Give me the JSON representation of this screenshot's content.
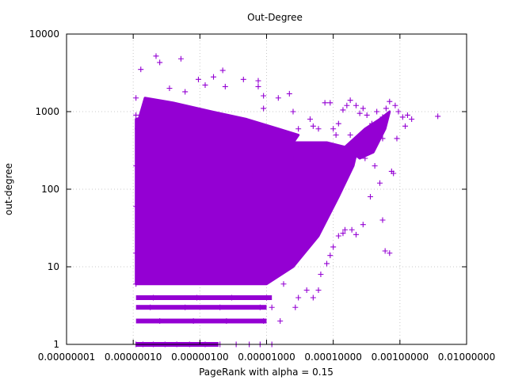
{
  "chart_data": {
    "type": "scatter",
    "title": "Out-Degree",
    "xlabel": "PageRank with alpha = 0.15",
    "ylabel": "out-degree",
    "x_scale": "log",
    "y_scale": "log",
    "xlim": [
      1e-08,
      0.01
    ],
    "ylim": [
      1,
      10000
    ],
    "x_ticks": [
      {
        "value": 1e-08,
        "label": "0.00000001"
      },
      {
        "value": 1e-07,
        "label": "0.00000010"
      },
      {
        "value": 1e-06,
        "label": "0.00000100"
      },
      {
        "value": 1e-05,
        "label": "0.00001000"
      },
      {
        "value": 0.0001,
        "label": "0.00010000"
      },
      {
        "value": 0.001,
        "label": "0.00100000"
      },
      {
        "value": 0.01,
        "label": "0.01000000"
      }
    ],
    "y_ticks": [
      {
        "value": 1,
        "label": "1"
      },
      {
        "value": 10,
        "label": "10"
      },
      {
        "value": 100,
        "label": "100"
      },
      {
        "value": 1000,
        "label": "1000"
      },
      {
        "value": 10000,
        "label": "10000"
      }
    ],
    "grid": true,
    "legend": "none",
    "marker": "+",
    "color": "#9400d3",
    "series": [
      {
        "values": [
          [
            1.3e-07,
            3500
          ],
          [
            2.2e-07,
            5200
          ],
          [
            2.5e-07,
            4300
          ],
          [
            5.2e-07,
            4800
          ],
          [
            3.5e-07,
            2000
          ],
          [
            6e-07,
            1800
          ],
          [
            9.5e-07,
            2600
          ],
          [
            1.2e-06,
            2200
          ],
          [
            1.6e-06,
            2800
          ],
          [
            2.4e-06,
            2100
          ],
          [
            4.5e-06,
            2600
          ],
          [
            7.5e-06,
            2500
          ],
          [
            7.5e-06,
            2100
          ],
          [
            2.2e-06,
            3400
          ],
          [
            9e-06,
            1600
          ],
          [
            1.5e-05,
            1500
          ],
          [
            9e-06,
            1100
          ],
          [
            2.2e-05,
            1700
          ],
          [
            2.5e-05,
            1000
          ],
          [
            3e-05,
            600
          ],
          [
            4.5e-05,
            800
          ],
          [
            5e-05,
            650
          ],
          [
            6e-05,
            600
          ],
          [
            7.5e-05,
            1300
          ],
          [
            9e-05,
            1300
          ],
          [
            0.0001,
            600
          ],
          [
            0.00011,
            500
          ],
          [
            0.00012,
            700
          ],
          [
            0.00014,
            1050
          ],
          [
            0.00016,
            1200
          ],
          [
            0.00018,
            1400
          ],
          [
            0.00022,
            1200
          ],
          [
            0.00025,
            950
          ],
          [
            0.00028,
            1100
          ],
          [
            0.00032,
            900
          ],
          [
            0.00038,
            700
          ],
          [
            0.00045,
            1000
          ],
          [
            0.00055,
            850
          ],
          [
            0.00062,
            1100
          ],
          [
            0.0007,
            1350
          ],
          [
            0.00085,
            1200
          ],
          [
            0.00095,
            1000
          ],
          [
            0.0011,
            850
          ],
          [
            0.0012,
            650
          ],
          [
            0.0013,
            900
          ],
          [
            0.0015,
            800
          ],
          [
            0.0037,
            870
          ],
          [
            0.00018,
            500
          ],
          [
            0.00024,
            300
          ],
          [
            0.0003,
            250
          ],
          [
            0.0004,
            350
          ],
          [
            0.00055,
            450
          ],
          [
            0.00075,
            170
          ],
          [
            0.0008,
            160
          ],
          [
            0.0009,
            450
          ],
          [
            0.00042,
            200
          ],
          [
            0.0005,
            120
          ],
          [
            0.00036,
            80
          ],
          [
            0.00028,
            35
          ],
          [
            0.00022,
            26
          ],
          [
            0.00055,
            40
          ],
          [
            0.0006,
            16
          ],
          [
            0.0007,
            15
          ],
          [
            0.00019,
            30
          ],
          [
            0.00015,
            30
          ],
          [
            0.00014,
            27
          ],
          [
            0.00012,
            25
          ],
          [
            0.0001,
            18
          ],
          [
            9e-05,
            14
          ],
          [
            8e-05,
            11
          ],
          [
            6.5e-05,
            8
          ],
          [
            6e-05,
            5
          ],
          [
            5e-05,
            4
          ],
          [
            4e-05,
            5
          ],
          [
            3e-05,
            4
          ],
          [
            2.7e-05,
            3
          ],
          [
            1.8e-05,
            6
          ],
          [
            1.2e-05,
            3
          ],
          [
            1.6e-05,
            2
          ],
          [
            1.2e-05,
            1
          ],
          [
            8e-06,
            1
          ],
          [
            5.5e-06,
            1
          ],
          [
            3.5e-06,
            1
          ],
          [
            2e-06,
            1
          ],
          [
            1.2e-06,
            1
          ],
          [
            7e-07,
            1
          ],
          [
            4.5e-07,
            1
          ],
          [
            3e-07,
            1
          ],
          [
            2e-07,
            1
          ],
          [
            1.4e-07,
            1
          ],
          [
            1.1e-07,
            1
          ],
          [
            9e-06,
            2
          ],
          [
            2.5e-06,
            2
          ],
          [
            8e-07,
            2
          ],
          [
            2.5e-07,
            2
          ],
          [
            8e-06,
            3
          ],
          [
            2e-06,
            3
          ],
          [
            6e-07,
            3
          ],
          [
            1.8e-07,
            3
          ],
          [
            1e-05,
            4
          ],
          [
            3e-06,
            4
          ],
          [
            9e-07,
            4
          ],
          [
            2e-07,
            4
          ],
          [
            1.1e-07,
            6
          ],
          [
            1.1e-07,
            15
          ],
          [
            1.1e-07,
            60
          ],
          [
            1.1e-07,
            200
          ],
          [
            1.1e-07,
            900
          ],
          [
            1.1e-07,
            1500
          ],
          [
            1.4e-07,
            800
          ],
          [
            2e-07,
            600
          ],
          [
            4e-07,
            300
          ],
          [
            8e-07,
            200
          ],
          [
            1.5e-06,
            150
          ],
          [
            3e-06,
            120
          ],
          [
            6e-06,
            150
          ],
          [
            1.2e-05,
            200
          ],
          [
            2.5e-05,
            250
          ],
          [
            5e-05,
            300
          ],
          [
            8e-05,
            250
          ],
          [
            0.00012,
            300
          ],
          [
            5e-07,
            40
          ],
          [
            1.5e-06,
            30
          ],
          [
            4e-06,
            20
          ],
          [
            1e-05,
            15
          ],
          [
            2e-05,
            12
          ],
          [
            4e-05,
            20
          ],
          [
            6e-05,
            30
          ]
        ]
      }
    ]
  }
}
